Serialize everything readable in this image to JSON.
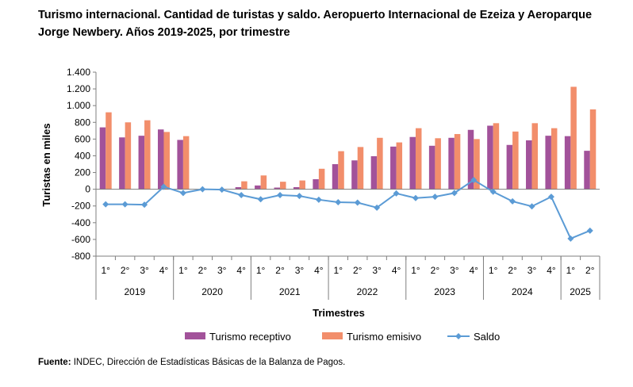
{
  "title": "Turismo internacional. Cantidad de turistas y saldo. Aeropuerto Internacional de Ezeiza y Aeroparque Jorge Newbery. Años 2019-2025, por trimestre",
  "source": {
    "label": "Fuente:",
    "text": "INDEC, Dirección de Estadísticas Básicas de la Balanza de Pagos."
  },
  "chart_data": {
    "type": "bar",
    "ylabel": "Turistas en miles",
    "xlabel": "Trimestres",
    "ylim": [
      -800,
      1400
    ],
    "yticks": [
      1400,
      1200,
      1000,
      800,
      600,
      400,
      200,
      0,
      -200,
      -400,
      -600,
      -800
    ],
    "ytick_labels": [
      "1.400",
      "1.200",
      "1.000",
      "800",
      "600",
      "400",
      "200",
      "0",
      "-200",
      "-400",
      "-600",
      "-800"
    ],
    "grid": false,
    "legend_position": "bottom",
    "categories": [
      "1°",
      "2°",
      "3°",
      "4°",
      "1°",
      "2°",
      "3°",
      "4°",
      "1°",
      "2°",
      "3°",
      "4°",
      "1°",
      "2°",
      "3°",
      "4°",
      "1°",
      "2°",
      "3°",
      "4°",
      "1°",
      "2°",
      "3°",
      "4°",
      "1°",
      "2°"
    ],
    "years": [
      {
        "label": "2019",
        "quarters": 4
      },
      {
        "label": "2020",
        "quarters": 4
      },
      {
        "label": "2021",
        "quarters": 4
      },
      {
        "label": "2022",
        "quarters": 4
      },
      {
        "label": "2023",
        "quarters": 4
      },
      {
        "label": "2024",
        "quarters": 4
      },
      {
        "label": "2025",
        "quarters": 2
      }
    ],
    "series": [
      {
        "name": "Turismo receptivo",
        "type": "bar",
        "color": "#A2529A",
        "values": [
          740,
          620,
          640,
          715,
          590,
          0,
          0,
          25,
          45,
          20,
          25,
          120,
          300,
          345,
          395,
          510,
          625,
          520,
          615,
          710,
          760,
          530,
          585,
          640,
          635,
          460
        ]
      },
      {
        "name": "Turismo emisivo",
        "type": "bar",
        "color": "#F28E6B",
        "values": [
          920,
          800,
          825,
          685,
          635,
          0,
          0,
          95,
          165,
          90,
          105,
          245,
          455,
          505,
          615,
          560,
          730,
          610,
          660,
          600,
          790,
          690,
          790,
          730,
          1225,
          955
        ]
      },
      {
        "name": "Saldo",
        "type": "line",
        "color": "#5B9BD5",
        "values": [
          -180,
          -180,
          -185,
          30,
          -45,
          0,
          -5,
          -70,
          -120,
          -70,
          -80,
          -125,
          -155,
          -160,
          -220,
          -50,
          -105,
          -90,
          -45,
          110,
          -30,
          -145,
          -205,
          -90,
          -590,
          -495
        ]
      }
    ]
  }
}
